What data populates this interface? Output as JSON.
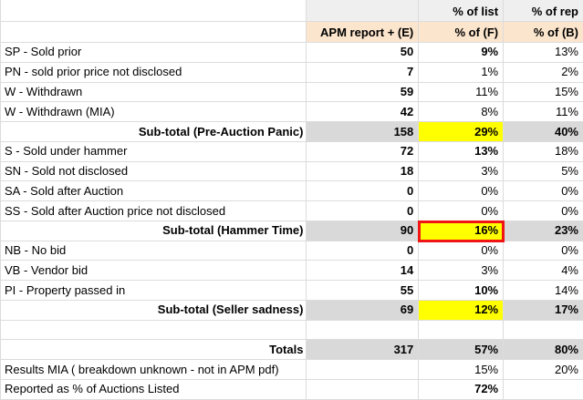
{
  "colors": {
    "subtotal_gray": "#d9d9d9",
    "header_row1_gray": "#efefef",
    "header_row2_orange": "#fce5cd",
    "highlight_yellow": "#ffff00",
    "selection_border_red": "#f01414",
    "gridline": "#dcdcdc"
  },
  "sheet": {
    "header_row1": {
      "label": "",
      "e": "",
      "f": "% of list",
      "b": "% of rep"
    },
    "header_row2": {
      "label": "",
      "e": "APM report + (E)",
      "f": "% of (F)",
      "b": "% of (B)"
    },
    "rows": [
      {
        "label": "SP - Sold prior",
        "e": "50",
        "f": "9%",
        "b": "13%"
      },
      {
        "label": "PN - sold prior price not disclosed",
        "e": "7",
        "f": "1%",
        "b": "2%"
      },
      {
        "label": "W - Withdrawn",
        "e": "59",
        "f": "11%",
        "b": "15%"
      },
      {
        "label": "W - Withdrawn (MIA)",
        "e": "42",
        "f": "8%",
        "b": "11%"
      },
      {
        "label": "Sub-total (Pre-Auction Panic)",
        "e": "158",
        "f": "29%",
        "b": "40%"
      },
      {
        "label": "S - Sold under hammer",
        "e": "72",
        "f": "13%",
        "b": "18%"
      },
      {
        "label": "SN - Sold not disclosed",
        "e": "18",
        "f": "3%",
        "b": "5%"
      },
      {
        "label": "SA - Sold after Auction",
        "e": "0",
        "f": "0%",
        "b": "0%"
      },
      {
        "label": "SS - Sold after Auction price not disclosed",
        "e": "0",
        "f": "0%",
        "b": "0%"
      },
      {
        "label": "Sub-total (Hammer Time)",
        "e": "90",
        "f": "16%",
        "b": "23%"
      },
      {
        "label": "NB - No bid",
        "e": "0",
        "f": "0%",
        "b": "0%"
      },
      {
        "label": "VB - Vendor bid",
        "e": "14",
        "f": "3%",
        "b": "4%"
      },
      {
        "label": "PI - Property passed in",
        "e": "55",
        "f": "10%",
        "b": "14%"
      },
      {
        "label": "Sub-total (Seller sadness)",
        "e": "69",
        "f": "12%",
        "b": "17%"
      },
      {
        "label": "",
        "e": "",
        "f": "",
        "b": ""
      },
      {
        "label": "Totals",
        "e": "317",
        "f": "57%",
        "b": "80%"
      },
      {
        "label": "Results MIA ( breakdown unknown - not in APM pdf)",
        "e": "",
        "f": "15%",
        "b": "20%"
      },
      {
        "label": "Reported as % of Auctions Listed",
        "e": "",
        "f": "72%",
        "b": ""
      }
    ]
  }
}
